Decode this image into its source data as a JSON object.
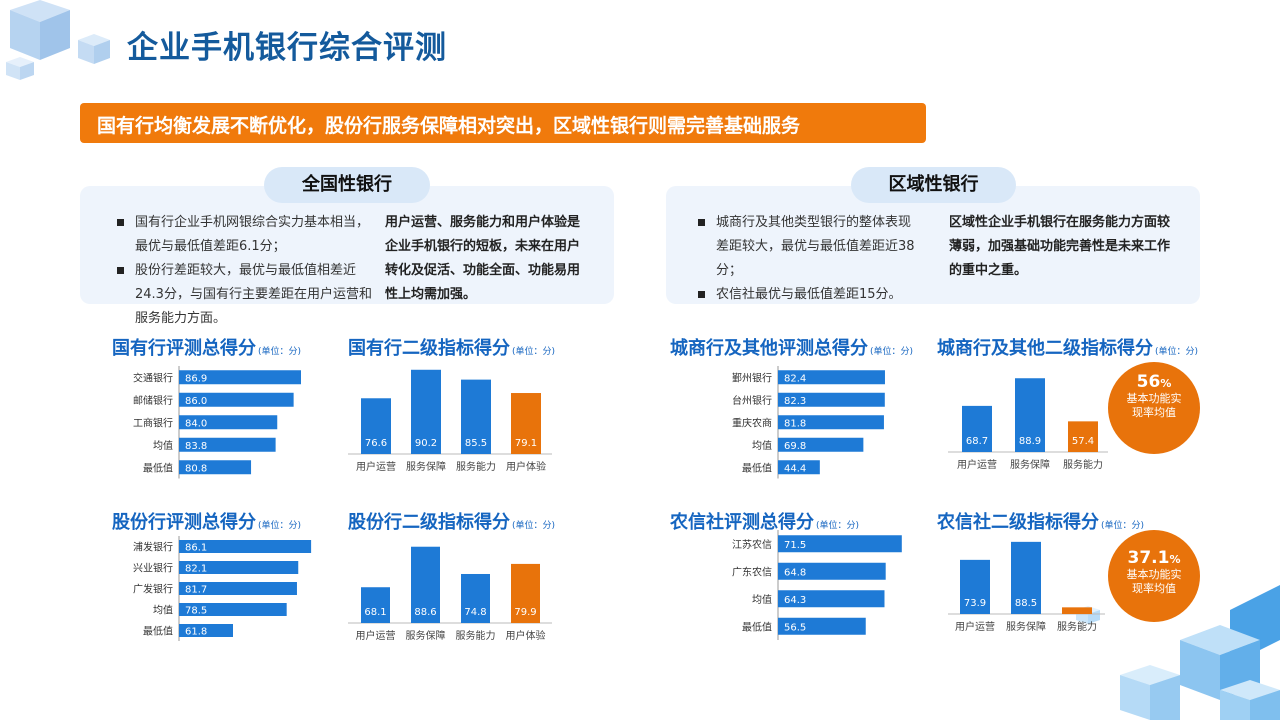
{
  "title": "企业手机银行综合评测",
  "banner": "国有行均衡发展不断优化，股份行服务保障相对突出，区域性银行则需完善基础服务",
  "left_panel": {
    "heading": "全国性银行",
    "bullets": [
      "国有行企业手机网银综合实力基本相当，最优与最低值差距6.1分；",
      "股份行差距较大，最优与最低值相差近24.3分，与国有行主要差距在用户运营和服务能力方面。"
    ],
    "note": "用户运营、服务能力和用户体验是企业手机银行的短板，未来在用户转化及促活、功能全面、功能易用性上均需加强。"
  },
  "right_panel": {
    "heading": "区域性银行",
    "bullets": [
      "城商行及其他类型银行的整体表现差距较大，最优与最低值差距近38分；",
      "农信社最优与最低值差距15分。"
    ],
    "note": "区域性企业手机银行在服务能力方面较薄弱，加强基础功能完善性是未来工作的重中之重。"
  },
  "callouts": {
    "city": {
      "value": "56",
      "unit": "%",
      "label": "基本功能实现率均值"
    },
    "rural": {
      "value": "37.1",
      "unit": "%",
      "label": "基本功能实现率均值"
    }
  },
  "colors": {
    "blue": "#1e7ad6",
    "orange": "#e8730b",
    "title_blue": "#1565c0"
  },
  "chart_data": [
    {
      "id": "state_total",
      "type": "bar",
      "orientation": "horizontal",
      "title": "国有行评测总得分",
      "unit": "(单位：分)",
      "categories": [
        "交通银行",
        "邮储银行",
        "工商银行",
        "均值",
        "最低值"
      ],
      "values": [
        86.9,
        86.0,
        84.0,
        83.8,
        80.8
      ]
    },
    {
      "id": "state_sub",
      "type": "bar",
      "title": "国有行二级指标得分",
      "unit": "(单位：分)",
      "categories": [
        "用户运营",
        "服务保障",
        "服务能力",
        "用户体验"
      ],
      "values": [
        76.6,
        90.2,
        85.5,
        79.1
      ],
      "highlight": [
        3
      ]
    },
    {
      "id": "joint_total",
      "type": "bar",
      "orientation": "horizontal",
      "title": "股份行评测总得分",
      "unit": "(单位：分)",
      "categories": [
        "浦发银行",
        "兴业银行",
        "广发银行",
        "均值",
        "最低值"
      ],
      "values": [
        86.1,
        82.1,
        81.7,
        78.5,
        61.8
      ]
    },
    {
      "id": "joint_sub",
      "type": "bar",
      "title": "股份行二级指标得分",
      "unit": "(单位：分)",
      "categories": [
        "用户运营",
        "服务保障",
        "服务能力",
        "用户体验"
      ],
      "values": [
        68.1,
        88.6,
        74.8,
        79.9
      ],
      "highlight": [
        3
      ]
    },
    {
      "id": "city_total",
      "type": "bar",
      "orientation": "horizontal",
      "title": "城商行及其他评测总得分",
      "unit": "(单位：分)",
      "categories": [
        "鄞州银行",
        "台州银行",
        "重庆农商",
        "均值",
        "最低值"
      ],
      "values": [
        82.4,
        82.3,
        81.8,
        69.8,
        44.4
      ]
    },
    {
      "id": "city_sub",
      "type": "bar",
      "title": "城商行及其他二级指标得分",
      "unit": "(单位：分)",
      "categories": [
        "用户运营",
        "服务保障",
        "服务能力"
      ],
      "values": [
        68.7,
        88.9,
        57.4
      ],
      "highlight": [
        2
      ]
    },
    {
      "id": "rural_total",
      "type": "bar",
      "orientation": "horizontal",
      "title": "农信社评测总得分",
      "unit": "(单位：分)",
      "categories": [
        "江苏农信",
        "广东农信",
        "均值",
        "最低值"
      ],
      "values": [
        71.5,
        64.8,
        64.3,
        56.5
      ]
    },
    {
      "id": "rural_sub",
      "type": "bar",
      "title": "农信社二级指标得分",
      "unit": "(单位：分)",
      "categories": [
        "用户运营",
        "服务保障",
        "服务能力"
      ],
      "values": [
        73.9,
        88.5,
        35.4
      ],
      "highlight": [
        2
      ]
    }
  ]
}
